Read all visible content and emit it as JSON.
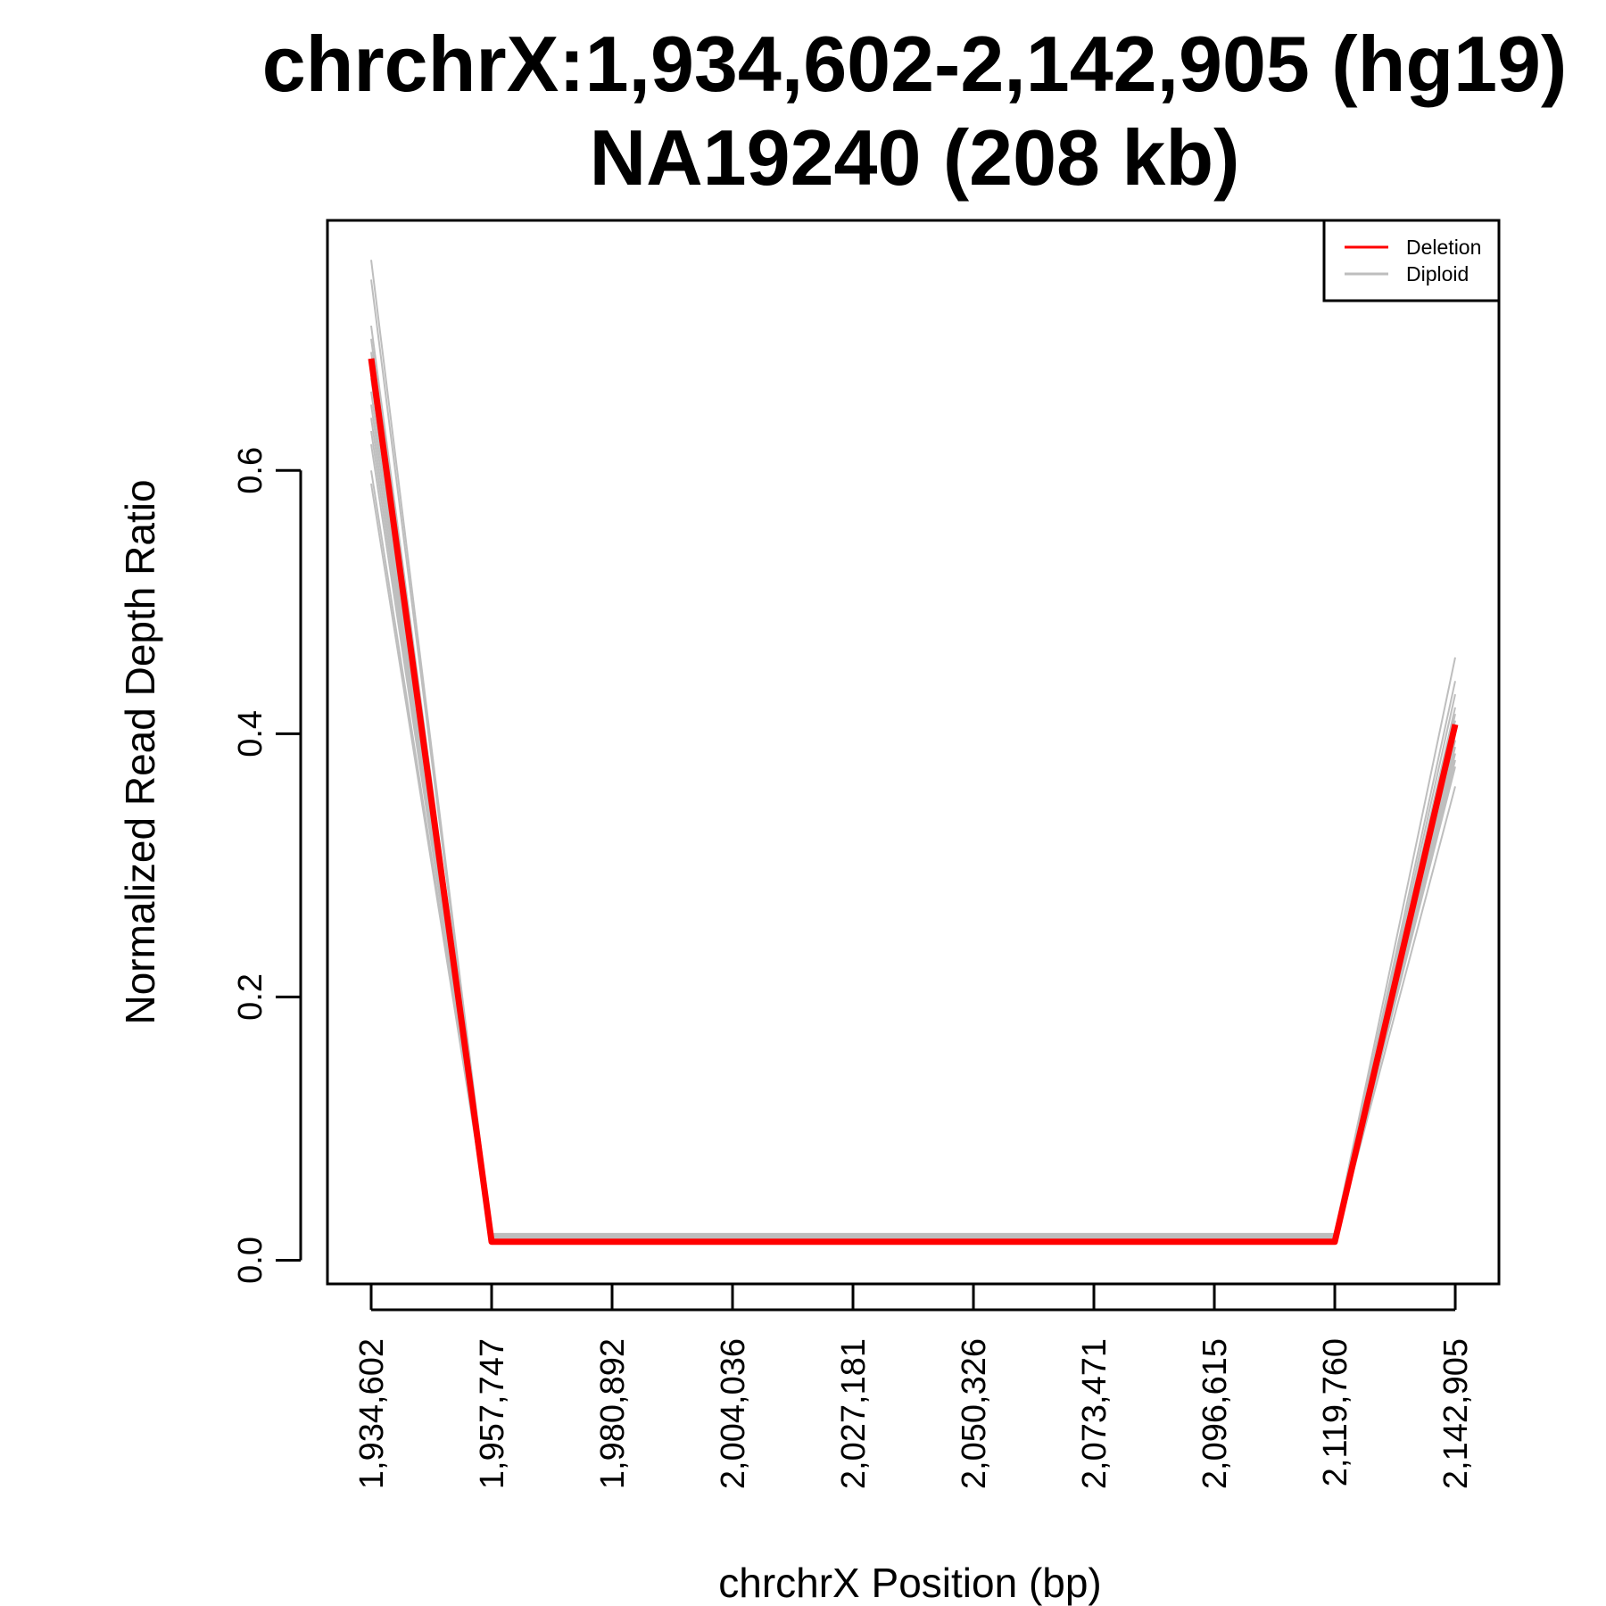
{
  "chart_data": {
    "type": "line",
    "title": "chrchrX:1,934,602-2,142,905 (hg19)",
    "subtitle": "NA19240 (208 kb)",
    "xlabel": "chrchrX Position (bp)",
    "ylabel": "Normalized Read Depth Ratio",
    "x": [
      1934602,
      1957747,
      1980892,
      2004036,
      2027181,
      2050326,
      2073471,
      2096615,
      2119760,
      2142905
    ],
    "x_tick_labels": [
      "1,934,602",
      "1,957,747",
      "1,980,892",
      "2,004,036",
      "2,027,181",
      "2,050,326",
      "2,073,471",
      "2,096,615",
      "2,119,760",
      "2,142,905"
    ],
    "y_ticks": [
      0.0,
      0.2,
      0.4,
      0.6
    ],
    "y_tick_labels": [
      "0.0",
      "0.2",
      "0.4",
      "0.6"
    ],
    "xlim": [
      1926200,
      2151300
    ],
    "ylim": [
      -0.018,
      0.79
    ],
    "grid": false,
    "legend": {
      "placement": "top-right",
      "entries": [
        {
          "label": "Deletion",
          "color": "#ff0000"
        },
        {
          "label": "Diploid",
          "color": "#bebebe"
        }
      ]
    },
    "series": [
      {
        "name": "Deletion",
        "color": "#ff0000",
        "values": [
          0.685,
          0.014,
          0.014,
          0.014,
          0.014,
          0.014,
          0.014,
          0.014,
          0.014,
          0.407
        ]
      }
    ],
    "background_series": {
      "name": "Diploid",
      "color": "#bebebe",
      "series": [
        [
          0.76,
          0.02,
          0.02,
          0.02,
          0.02,
          0.02,
          0.02,
          0.02,
          0.02,
          0.458
        ],
        [
          0.745,
          0.019,
          0.019,
          0.019,
          0.019,
          0.019,
          0.019,
          0.019,
          0.019,
          0.44
        ],
        [
          0.71,
          0.018,
          0.018,
          0.018,
          0.018,
          0.018,
          0.018,
          0.018,
          0.018,
          0.43
        ],
        [
          0.7,
          0.018,
          0.018,
          0.018,
          0.018,
          0.018,
          0.018,
          0.018,
          0.018,
          0.42
        ],
        [
          0.69,
          0.017,
          0.017,
          0.017,
          0.017,
          0.017,
          0.017,
          0.017,
          0.017,
          0.415
        ],
        [
          0.68,
          0.017,
          0.017,
          0.017,
          0.017,
          0.017,
          0.017,
          0.017,
          0.017,
          0.41
        ],
        [
          0.67,
          0.016,
          0.016,
          0.016,
          0.016,
          0.016,
          0.016,
          0.016,
          0.016,
          0.405
        ],
        [
          0.66,
          0.016,
          0.016,
          0.016,
          0.016,
          0.016,
          0.016,
          0.016,
          0.016,
          0.4
        ],
        [
          0.65,
          0.016,
          0.016,
          0.016,
          0.016,
          0.016,
          0.016,
          0.016,
          0.016,
          0.395
        ],
        [
          0.64,
          0.015,
          0.015,
          0.015,
          0.015,
          0.015,
          0.015,
          0.015,
          0.015,
          0.39
        ],
        [
          0.63,
          0.015,
          0.015,
          0.015,
          0.015,
          0.015,
          0.015,
          0.015,
          0.015,
          0.385
        ],
        [
          0.62,
          0.015,
          0.015,
          0.015,
          0.015,
          0.015,
          0.015,
          0.015,
          0.015,
          0.38
        ],
        [
          0.6,
          0.015,
          0.015,
          0.015,
          0.015,
          0.015,
          0.015,
          0.015,
          0.015,
          0.375
        ],
        [
          0.59,
          0.014,
          0.014,
          0.014,
          0.014,
          0.014,
          0.014,
          0.014,
          0.014,
          0.36
        ]
      ]
    }
  }
}
